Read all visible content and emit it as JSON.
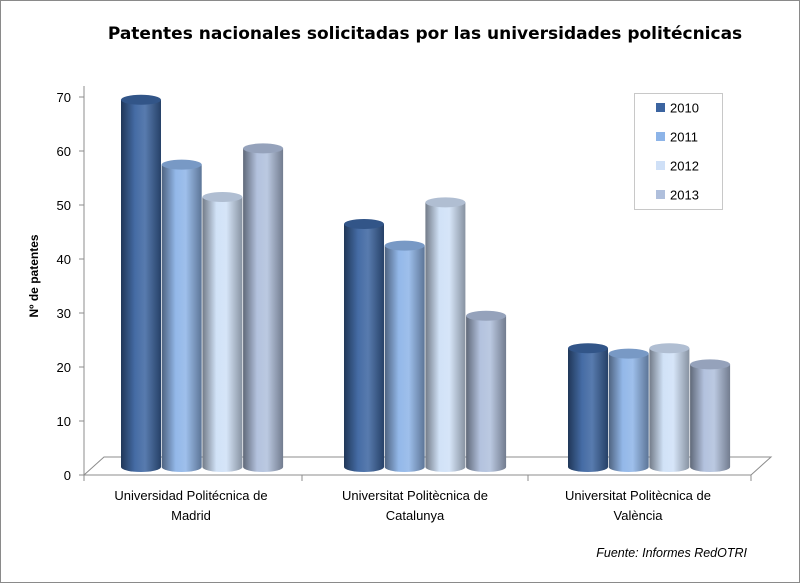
{
  "chart_data": {
    "type": "bar",
    "style": "3d-cylinder",
    "title": "Patentes nacionales solicitadas por las universidades politécnicas",
    "ylabel": "Nº de patentes",
    "xlabel": "",
    "ylim": [
      0,
      70
    ],
    "yticks": [
      "0",
      "10",
      "20",
      "30",
      "40",
      "50",
      "60",
      "70"
    ],
    "grid": false,
    "legend_position": "top-right",
    "categories": [
      [
        "Universidad Politécnica de",
        "Madrid"
      ],
      [
        "Universitat Politècnica de",
        "Catalunya"
      ],
      [
        "Universitat Politècnica de",
        "València"
      ]
    ],
    "series": [
      {
        "name": "2010",
        "color": "#3b64a0",
        "values": [
          68,
          45,
          22
        ]
      },
      {
        "name": "2011",
        "color": "#8db4e8",
        "values": [
          56,
          41,
          21
        ]
      },
      {
        "name": "2012",
        "color": "#cfe0f7",
        "values": [
          50,
          49,
          22
        ]
      },
      {
        "name": "2013",
        "color": "#afbfdc",
        "values": [
          59,
          28,
          19
        ]
      }
    ],
    "source": "Fuente: Informes RedOTRI"
  }
}
